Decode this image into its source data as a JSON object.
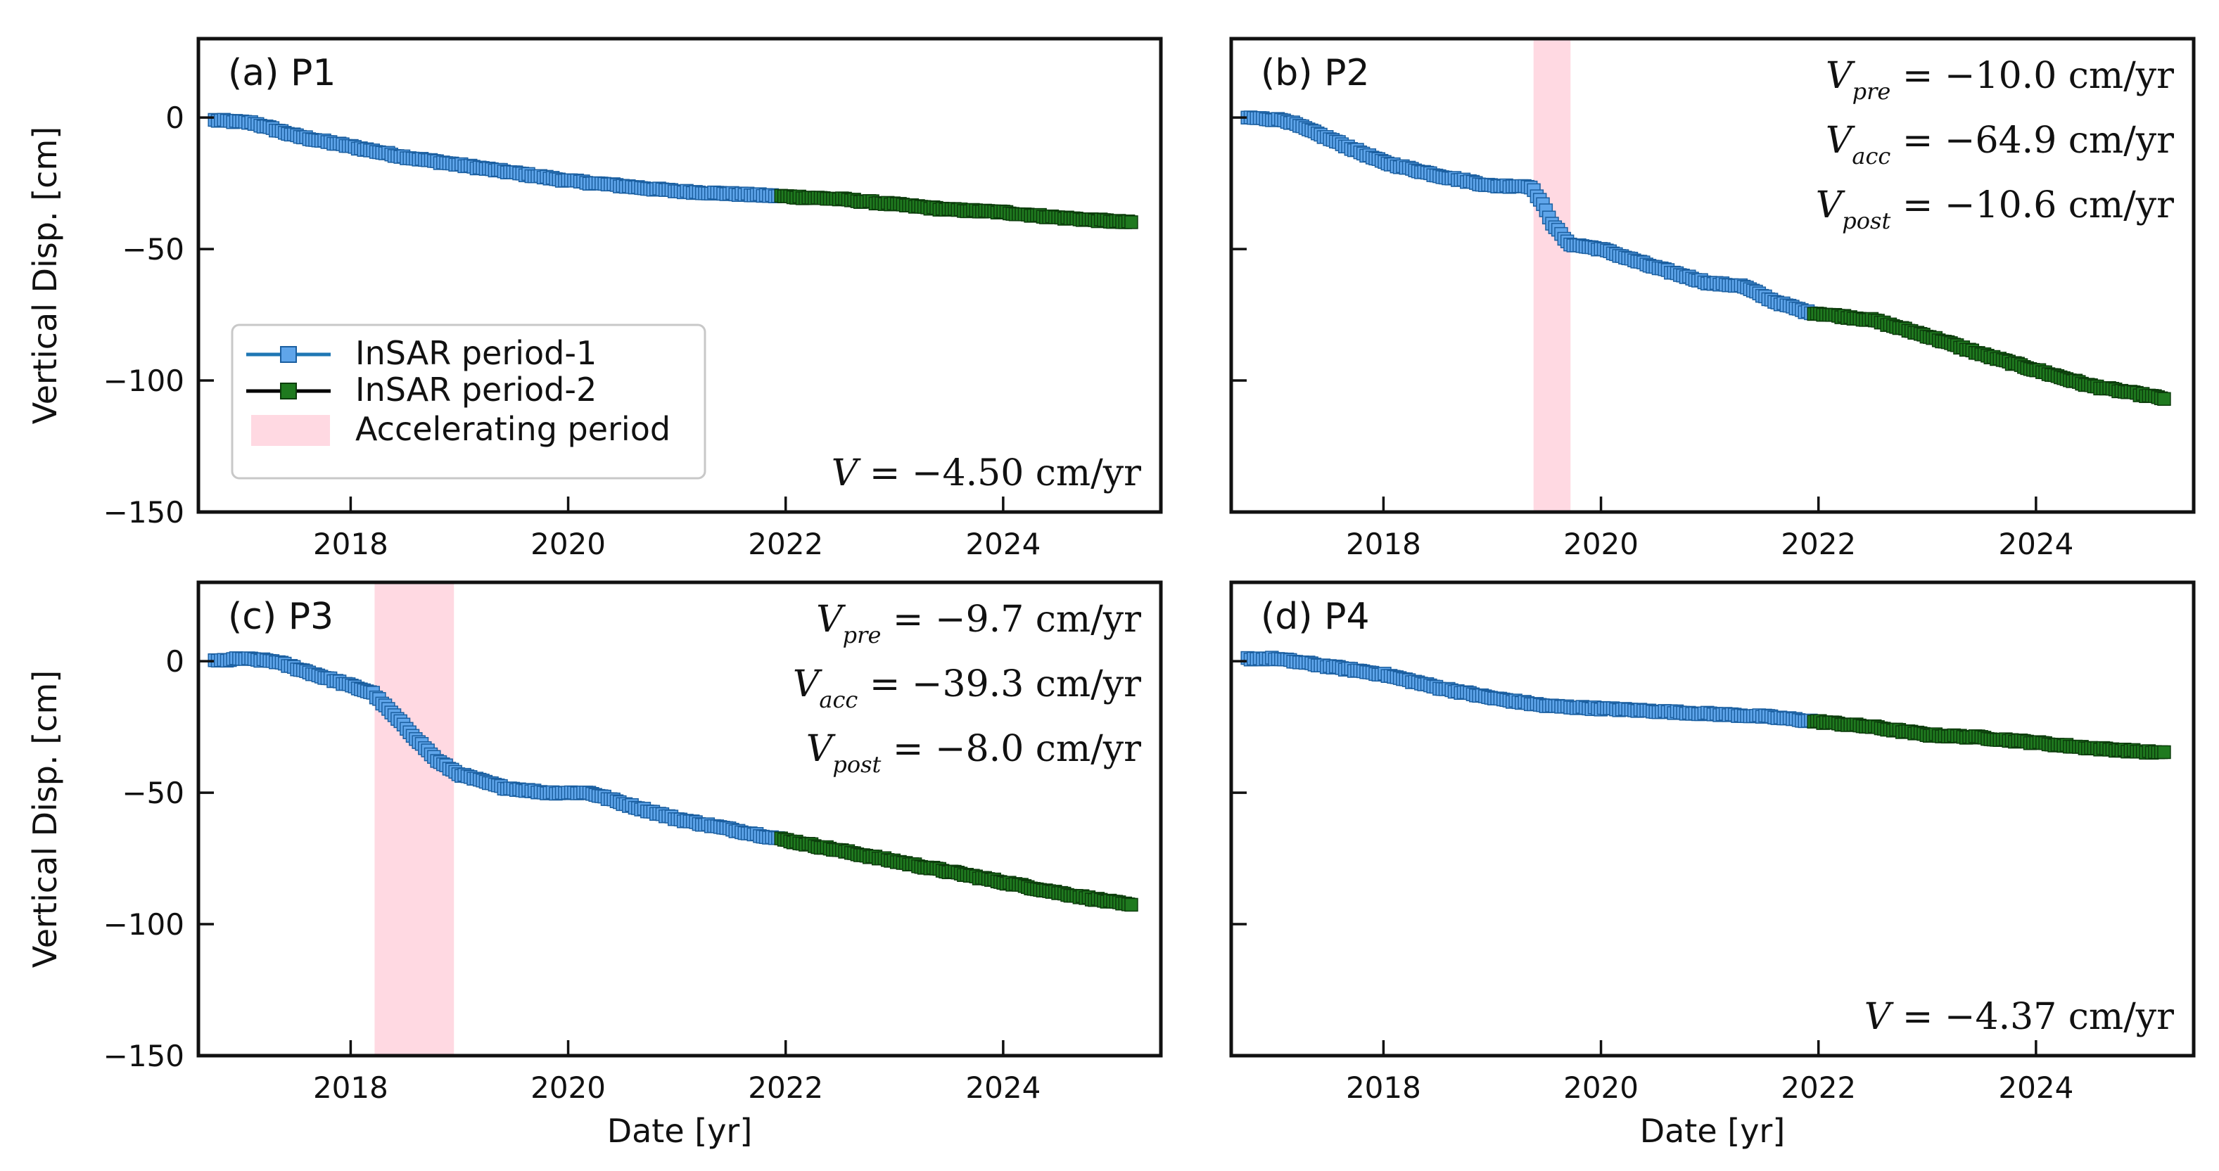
{
  "chart_data": {
    "type": "scatter",
    "colors": {
      "period1_fill": "#5fa5ea",
      "period1_line": "#1f77b4",
      "period2_fill": "#1f7a1f",
      "period2_line": "#000000",
      "accel": "#ffd9e2"
    },
    "x_label": "Date [yr]",
    "y_label": "Vertical Disp. [cm]",
    "xlim": [
      2016.6,
      2025.45
    ],
    "ylim": [
      -150,
      30
    ],
    "x_ticks": [
      2018,
      2020,
      2022,
      2024
    ],
    "x_tick_labels": [
      "2018",
      "2020",
      "2022",
      "2024"
    ],
    "y_ticks": [
      0,
      -50,
      -100,
      -150
    ],
    "y_tick_labels": [
      "0",
      "−50",
      "−100",
      "−150"
    ],
    "legend": {
      "position": "lower-left of panel (a)",
      "entries": [
        "InSAR period-1",
        "InSAR period-2",
        "Accelerating period"
      ]
    },
    "period_split": 2021.95,
    "panels": [
      {
        "id": "a",
        "title": "(a) P1",
        "accel_span": null,
        "annotations": [
          {
            "sym": "V",
            "sub": "",
            "text": " = −4.50 cm/yr"
          }
        ],
        "key_points": [
          [
            2016.75,
            -1
          ],
          [
            2017.1,
            -2
          ],
          [
            2017.5,
            -7
          ],
          [
            2018.0,
            -11
          ],
          [
            2018.5,
            -15
          ],
          [
            2019.0,
            -18
          ],
          [
            2019.5,
            -21
          ],
          [
            2020.0,
            -24
          ],
          [
            2020.5,
            -26
          ],
          [
            2021.0,
            -28
          ],
          [
            2021.5,
            -29
          ],
          [
            2022.0,
            -30
          ],
          [
            2022.5,
            -31
          ],
          [
            2023.0,
            -33
          ],
          [
            2023.5,
            -35
          ],
          [
            2024.0,
            -36
          ],
          [
            2024.5,
            -38
          ],
          [
            2025.2,
            -40
          ]
        ]
      },
      {
        "id": "b",
        "title": "(b) P2",
        "accel_span": [
          2019.38,
          2019.72
        ],
        "annotations": [
          {
            "sym": "V",
            "sub": "pre",
            "text": " = −10.0 cm/yr"
          },
          {
            "sym": "V",
            "sub": "acc",
            "text": " = −64.9 cm/yr"
          },
          {
            "sym": "V",
            "sub": "post",
            "text": " = −10.6 cm/yr"
          }
        ],
        "key_points": [
          [
            2016.75,
            0
          ],
          [
            2017.1,
            -1
          ],
          [
            2017.5,
            -8
          ],
          [
            2018.0,
            -17
          ],
          [
            2018.5,
            -22
          ],
          [
            2019.0,
            -26
          ],
          [
            2019.35,
            -26
          ],
          [
            2019.45,
            -32
          ],
          [
            2019.55,
            -40
          ],
          [
            2019.7,
            -48
          ],
          [
            2020.0,
            -50
          ],
          [
            2020.5,
            -57
          ],
          [
            2021.0,
            -63
          ],
          [
            2021.3,
            -64
          ],
          [
            2021.6,
            -70
          ],
          [
            2021.9,
            -74
          ],
          [
            2022.5,
            -77
          ],
          [
            2023.0,
            -83
          ],
          [
            2023.5,
            -90
          ],
          [
            2024.0,
            -96
          ],
          [
            2024.5,
            -102
          ],
          [
            2025.2,
            -107
          ]
        ]
      },
      {
        "id": "c",
        "title": "(c) P3",
        "accel_span": [
          2018.22,
          2018.95
        ],
        "annotations": [
          {
            "sym": "V",
            "sub": "pre",
            "text": " = −9.7 cm/yr"
          },
          {
            "sym": "V",
            "sub": "acc",
            "text": " = −39.3 cm/yr"
          },
          {
            "sym": "V",
            "sub": "post",
            "text": " = −8.0 cm/yr"
          }
        ],
        "key_points": [
          [
            2016.75,
            0
          ],
          [
            2017.0,
            1
          ],
          [
            2017.3,
            0
          ],
          [
            2017.6,
            -4
          ],
          [
            2017.9,
            -8
          ],
          [
            2018.2,
            -12
          ],
          [
            2018.5,
            -25
          ],
          [
            2018.8,
            -38
          ],
          [
            2019.0,
            -43
          ],
          [
            2019.4,
            -48
          ],
          [
            2019.8,
            -50
          ],
          [
            2020.2,
            -50
          ],
          [
            2020.5,
            -54
          ],
          [
            2021.0,
            -60
          ],
          [
            2021.5,
            -64
          ],
          [
            2022.0,
            -68
          ],
          [
            2022.5,
            -72
          ],
          [
            2023.0,
            -76
          ],
          [
            2023.5,
            -80
          ],
          [
            2024.0,
            -84
          ],
          [
            2024.5,
            -88
          ],
          [
            2025.2,
            -93
          ]
        ]
      },
      {
        "id": "d",
        "title": "(d) P4",
        "accel_span": null,
        "annotations": [
          {
            "sym": "V",
            "sub": "",
            "text": " = −4.37 cm/yr"
          }
        ],
        "key_points": [
          [
            2016.75,
            1
          ],
          [
            2017.0,
            1
          ],
          [
            2017.5,
            -2
          ],
          [
            2018.0,
            -5
          ],
          [
            2018.5,
            -10
          ],
          [
            2019.0,
            -14
          ],
          [
            2019.5,
            -17
          ],
          [
            2020.0,
            -18
          ],
          [
            2020.5,
            -19
          ],
          [
            2021.0,
            -20
          ],
          [
            2021.5,
            -21
          ],
          [
            2022.0,
            -23
          ],
          [
            2022.5,
            -25
          ],
          [
            2023.0,
            -28
          ],
          [
            2023.5,
            -29
          ],
          [
            2024.0,
            -31
          ],
          [
            2024.5,
            -33
          ],
          [
            2025.2,
            -35
          ]
        ]
      }
    ]
  }
}
